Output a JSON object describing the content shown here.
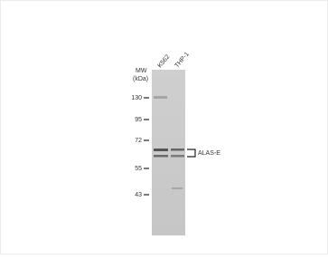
{
  "lanes": [
    "K562",
    "THP-1"
  ],
  "mw_label": [
    "MW",
    "(kDa)"
  ],
  "markers": [
    "130",
    "95",
    "72",
    "55",
    "43"
  ],
  "band_label": "ALAS-E"
}
